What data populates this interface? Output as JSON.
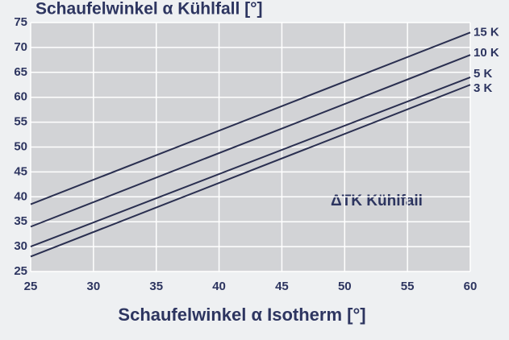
{
  "chart_data": {
    "type": "line",
    "title": "Schaufelwinkel α Kühlfall [°]",
    "x_label": "Schaufelwinkel α Isotherm [°]",
    "annotation": "ΔTK Kühlfall",
    "x": [
      25,
      60
    ],
    "series": [
      {
        "name": "15 K",
        "color": "#2a2f50",
        "values": [
          38.5,
          73
        ]
      },
      {
        "name": "10 K",
        "color": "#2a2f50",
        "values": [
          34,
          68.5
        ]
      },
      {
        "name": "5 K",
        "color": "#2a2f50",
        "values": [
          30,
          64
        ]
      },
      {
        "name": "3 K",
        "color": "#2a2f50",
        "values": [
          28,
          62.5
        ]
      }
    ],
    "xlim": [
      25,
      60
    ],
    "xticks": [
      25,
      30,
      35,
      40,
      45,
      50,
      55,
      60
    ],
    "ylim": [
      25,
      75
    ],
    "yticks": [
      25,
      30,
      35,
      40,
      45,
      50,
      55,
      60,
      65,
      70,
      75
    ],
    "grid": true
  }
}
